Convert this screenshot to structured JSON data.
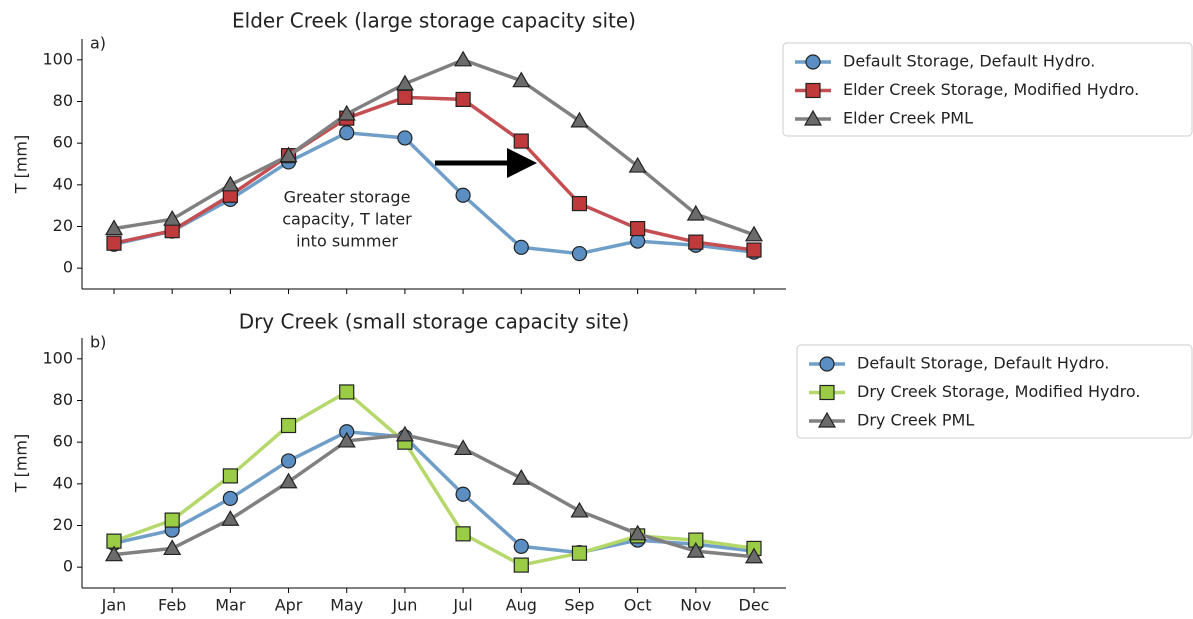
{
  "chart_data": [
    {
      "type": "line",
      "title": "Elder Creek (large storage capacity site)",
      "panel_label": "a)",
      "y_label": "T [mm]",
      "ylim": [
        -10,
        110
      ],
      "yticks": [
        0,
        20,
        40,
        60,
        80,
        100
      ],
      "annotation": [
        "Greater storage",
        "capacity, T later",
        "into summer"
      ],
      "series": [
        {
          "name": "Default Storage, Default Hydro.",
          "color": "#6f9ec8",
          "marker_color": "#5b8fc4",
          "marker": "circle",
          "values": [
            11.5,
            17.8,
            33,
            51,
            65,
            62.5,
            35,
            10,
            7,
            13,
            11,
            7.7
          ]
        },
        {
          "name": "Elder Creek Storage, Modified Hydro.",
          "color": "#c44e52",
          "marker_color": "#c0393b",
          "marker": "square",
          "values": [
            12,
            18,
            35,
            54,
            72,
            82,
            81,
            61,
            31,
            19,
            12.5,
            8.7
          ]
        },
        {
          "name": "Elder Creek PML",
          "color": "#808080",
          "marker_color": "#6b6b6b",
          "marker": "triangle",
          "values": [
            19,
            23.5,
            40,
            54,
            74,
            88.5,
            100,
            90,
            70.7,
            49,
            26,
            16
          ]
        }
      ]
    },
    {
      "type": "line",
      "title": "Dry Creek (small storage capacity site)",
      "panel_label": "b)",
      "y_label": "T [mm]",
      "categories": [
        "Jan",
        "Feb",
        "Mar",
        "Apr",
        "May",
        "Jun",
        "Jul",
        "Aug",
        "Sep",
        "Oct",
        "Nov",
        "Dec"
      ],
      "ylim": [
        -10,
        110
      ],
      "yticks": [
        0,
        20,
        40,
        60,
        80,
        100
      ],
      "series": [
        {
          "name": "Default Storage, Default Hydro.",
          "color": "#6f9ec8",
          "marker_color": "#5b8fc4",
          "marker": "circle",
          "values": [
            11.5,
            17.8,
            33,
            51,
            65,
            62.5,
            35,
            10,
            7,
            13,
            11,
            7.7
          ]
        },
        {
          "name": "Dry Creek Storage, Modified Hydro.",
          "color": "#b5d86a",
          "marker_color": "#9acd45",
          "marker": "square",
          "values": [
            12.5,
            22.6,
            43.8,
            68,
            84.1,
            60,
            16,
            1,
            6.7,
            15,
            13,
            9
          ]
        },
        {
          "name": "Dry Creek PML",
          "color": "#808080",
          "marker_color": "#6b6b6b",
          "marker": "triangle",
          "values": [
            6,
            9,
            23,
            41,
            60.6,
            63.5,
            57,
            42.7,
            27,
            16,
            7.7,
            5
          ]
        }
      ]
    }
  ]
}
